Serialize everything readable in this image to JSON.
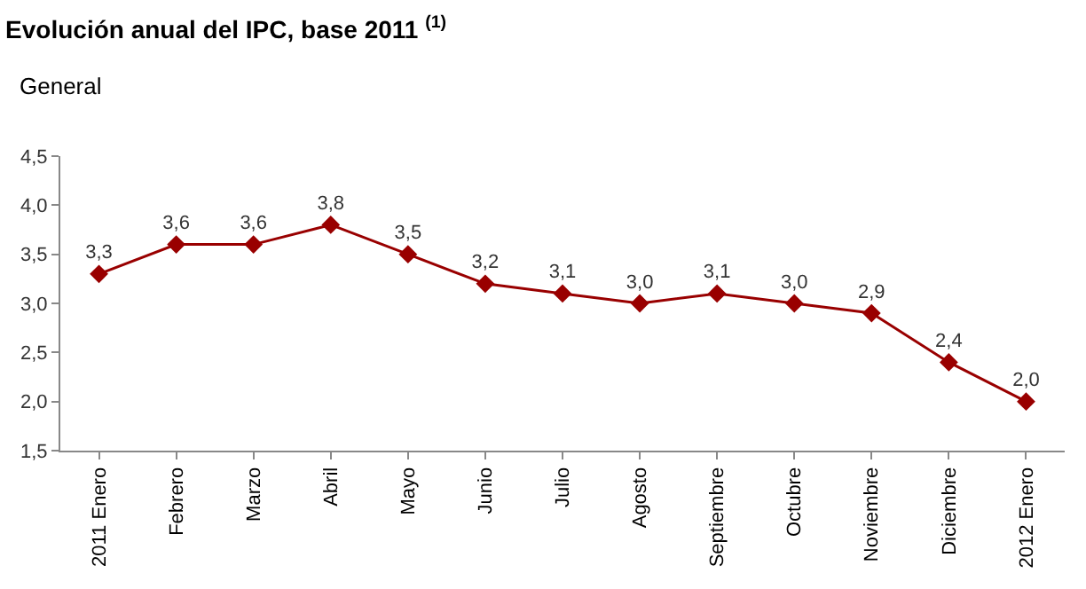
{
  "chart_data": {
    "type": "line",
    "title": "Evolución anual del IPC, base 2011 $^{(1)}$",
    "subtitle": "General",
    "categories": [
      "2011 Enero",
      "Febrero",
      "Marzo",
      "Abril",
      "Mayo",
      "Junio",
      "Julio",
      "Agosto",
      "Septiembre",
      "Octubre",
      "Noviembre",
      "Diciembre",
      "2012 Enero"
    ],
    "values": [
      3.3,
      3.6,
      3.6,
      3.8,
      3.5,
      3.2,
      3.1,
      3.0,
      3.1,
      3.0,
      2.9,
      2.4,
      2.0
    ],
    "value_labels": [
      "3,3",
      "3,6",
      "3,6",
      "3,8",
      "3,5",
      "3,2",
      "3,1",
      "3,0",
      "3,1",
      "3,0",
      "2,9",
      "2,4",
      "2,0"
    ],
    "color": "#990000",
    "marker": "diamond",
    "line_style": "solid",
    "grid": false,
    "legend": false,
    "ylim": [
      1.5,
      4.5
    ],
    "yticks": [
      {
        "value": 1.5,
        "label": "1,5"
      },
      {
        "value": 2.0,
        "label": "2,0"
      },
      {
        "value": 2.5,
        "label": "2,5"
      },
      {
        "value": 3.0,
        "label": "3,0"
      },
      {
        "value": 3.5,
        "label": "3,5"
      },
      {
        "value": 4.0,
        "label": "4,0"
      },
      {
        "value": 4.5,
        "label": "4,5"
      }
    ]
  }
}
